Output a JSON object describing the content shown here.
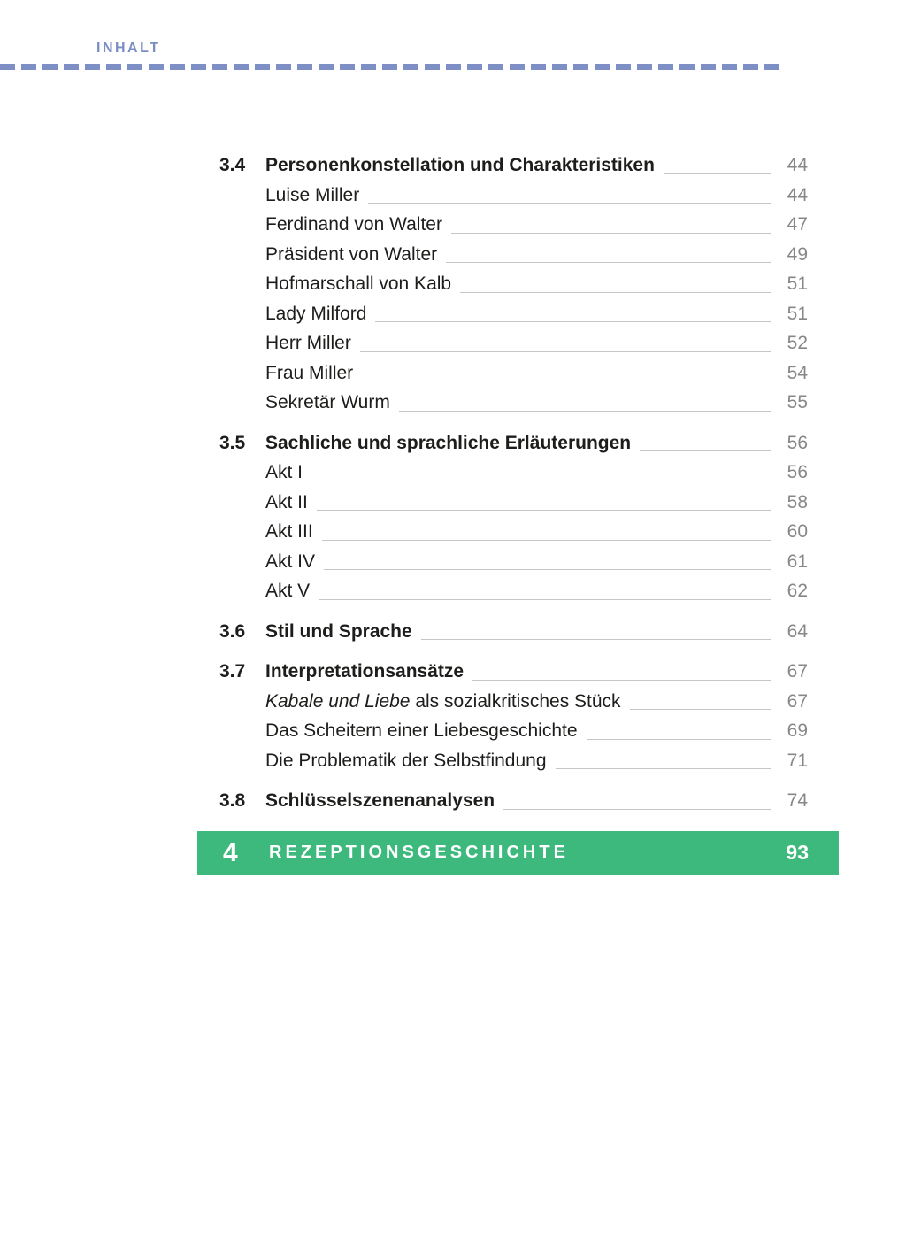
{
  "header": {
    "label": "INHALT"
  },
  "colors": {
    "accent_blue": "#7b8ec4",
    "banner_green": "#3eb97d",
    "banner_text": "#ffffff",
    "body_text": "#1d1d1b",
    "page_number_gray": "#878787",
    "leader_gray": "#c6c6c6"
  },
  "toc": {
    "rows": [
      {
        "type": "section",
        "num": "3.4",
        "label": "Personenkonstellation und Charakteristiken",
        "page": "44"
      },
      {
        "type": "item",
        "label": "Luise Miller",
        "page": "44"
      },
      {
        "type": "item",
        "label": "Ferdinand von Walter",
        "page": "47"
      },
      {
        "type": "item",
        "label": "Präsident von Walter",
        "page": "49"
      },
      {
        "type": "item",
        "label": "Hofmarschall von Kalb",
        "page": "51"
      },
      {
        "type": "item",
        "label": "Lady Milford",
        "page": "51"
      },
      {
        "type": "item",
        "label": "Herr Miller",
        "page": "52"
      },
      {
        "type": "item",
        "label": "Frau Miller",
        "page": "54"
      },
      {
        "type": "item",
        "label": "Sekretär Wurm",
        "page": "55"
      },
      {
        "type": "section",
        "num": "3.5",
        "label": "Sachliche und sprachliche Erläuterungen",
        "page": "56"
      },
      {
        "type": "item",
        "label": "Akt I",
        "page": "56"
      },
      {
        "type": "item",
        "label": "Akt II",
        "page": "58"
      },
      {
        "type": "item",
        "label": "Akt III",
        "page": "60"
      },
      {
        "type": "item",
        "label": "Akt IV",
        "page": "61"
      },
      {
        "type": "item",
        "label": "Akt V",
        "page": "62"
      },
      {
        "type": "section",
        "num": "3.6",
        "label": "Stil und Sprache",
        "page": "64"
      },
      {
        "type": "section",
        "num": "3.7",
        "label": "Interpretationsansätze",
        "page": "67"
      },
      {
        "type": "item",
        "label_italic": "Kabale und Liebe",
        "label_rest": " als sozialkritisches Stück",
        "page": "67"
      },
      {
        "type": "item",
        "label": "Das Scheitern einer Liebesgeschichte",
        "page": "69"
      },
      {
        "type": "item",
        "label": "Die Problematik der Selbstfindung",
        "page": "71"
      },
      {
        "type": "section",
        "num": "3.8",
        "label": "Schlüsselszenenanalysen",
        "page": "74"
      }
    ]
  },
  "banner": {
    "num": "4",
    "label": "REZEPTIONSGESCHICHTE",
    "page": "93"
  }
}
